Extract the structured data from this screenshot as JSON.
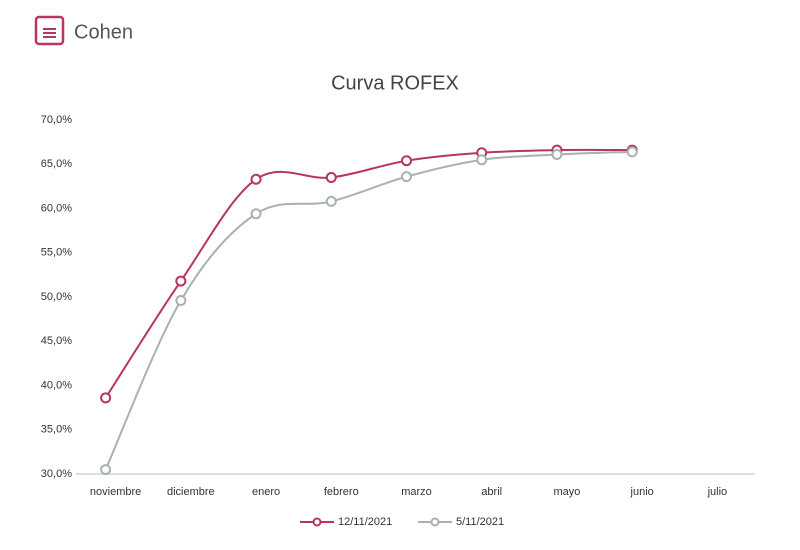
{
  "brand": "Cohen",
  "chart_data": {
    "type": "line",
    "title": "Curva ROFEX",
    "categories": [
      "noviembre",
      "diciembre",
      "enero",
      "febrero",
      "marzo",
      "abril",
      "mayo",
      "junio",
      "julio"
    ],
    "series": [
      {
        "name": "12/11/2021",
        "color": "#b5365f",
        "values": [
          38.6,
          51.8,
          63.3,
          63.5,
          65.4,
          66.3,
          66.6,
          66.6,
          null
        ]
      },
      {
        "name": "5/11/2021",
        "color": "#a9b3ad",
        "values": [
          30.5,
          49.6,
          59.4,
          60.8,
          63.6,
          65.5,
          66.1,
          66.4,
          null
        ]
      }
    ],
    "ylim": [
      30,
      70
    ],
    "yticks": [
      {
        "value": 30,
        "label": "30,0%"
      },
      {
        "value": 35,
        "label": "35,0%"
      },
      {
        "value": 40,
        "label": "40,0%"
      },
      {
        "value": 45,
        "label": "45,0%"
      },
      {
        "value": 50,
        "label": "50,0%"
      },
      {
        "value": 55,
        "label": "55,0%"
      },
      {
        "value": 60,
        "label": "60,0%"
      },
      {
        "value": 65,
        "label": "65,0%"
      },
      {
        "value": 70,
        "label": "70,0%"
      }
    ],
    "legend": "bottom"
  }
}
